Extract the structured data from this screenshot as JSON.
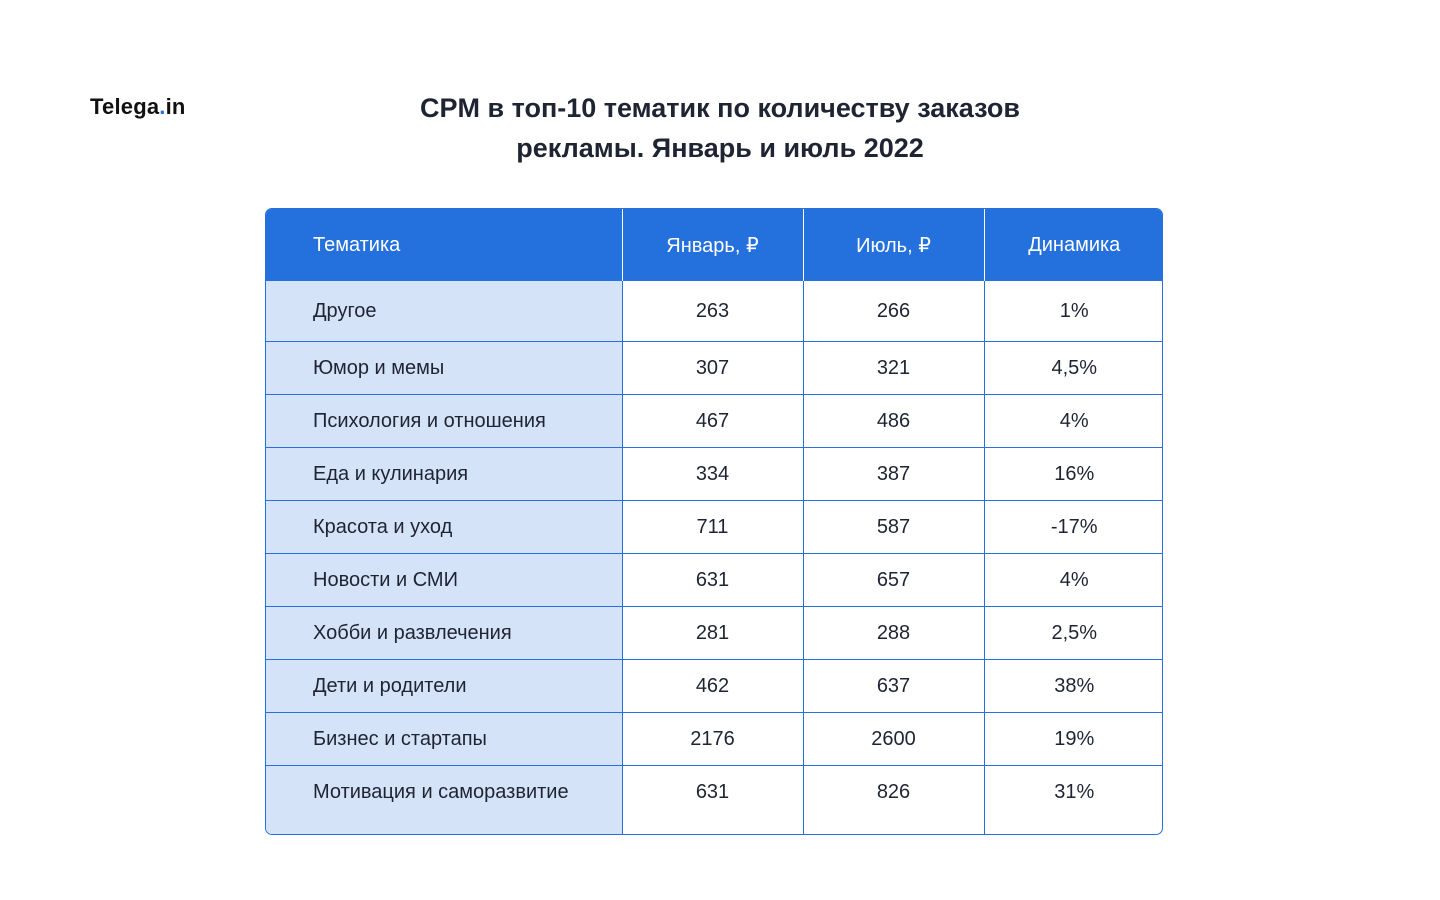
{
  "logo": {
    "name": "Telega",
    "dot": ".",
    "tld": "in"
  },
  "title": {
    "line1": "CPM в топ-10 тематик по количеству заказов",
    "line2": "рекламы. Январь и июль 2022"
  },
  "table": {
    "headers": [
      "Тематика",
      "Январь, ₽",
      "Июль, ₽",
      "Динамика"
    ],
    "rows": [
      [
        "Другое",
        "263",
        "266",
        "1%"
      ],
      [
        "Юмор и мемы",
        "307",
        "321",
        "4,5%"
      ],
      [
        "Психология и отношения",
        "467",
        "486",
        "4%"
      ],
      [
        "Еда и кулинария",
        "334",
        "387",
        "16%"
      ],
      [
        "Красота и уход",
        "711",
        "587",
        "-17%"
      ],
      [
        "Новости и СМИ",
        "631",
        "657",
        "4%"
      ],
      [
        "Хобби и развлечения",
        "281",
        "288",
        "2,5%"
      ],
      [
        "Дети и родители",
        "462",
        "637",
        "38%"
      ],
      [
        "Бизнес и стартапы",
        "2176",
        "2600",
        "19%"
      ],
      [
        "Мотивация и саморазвитие",
        "631",
        "826",
        "31%"
      ]
    ]
  },
  "colors": {
    "accent": "#2470dc",
    "topic_bg": "#d5e3f8",
    "text": "#1f2433"
  }
}
